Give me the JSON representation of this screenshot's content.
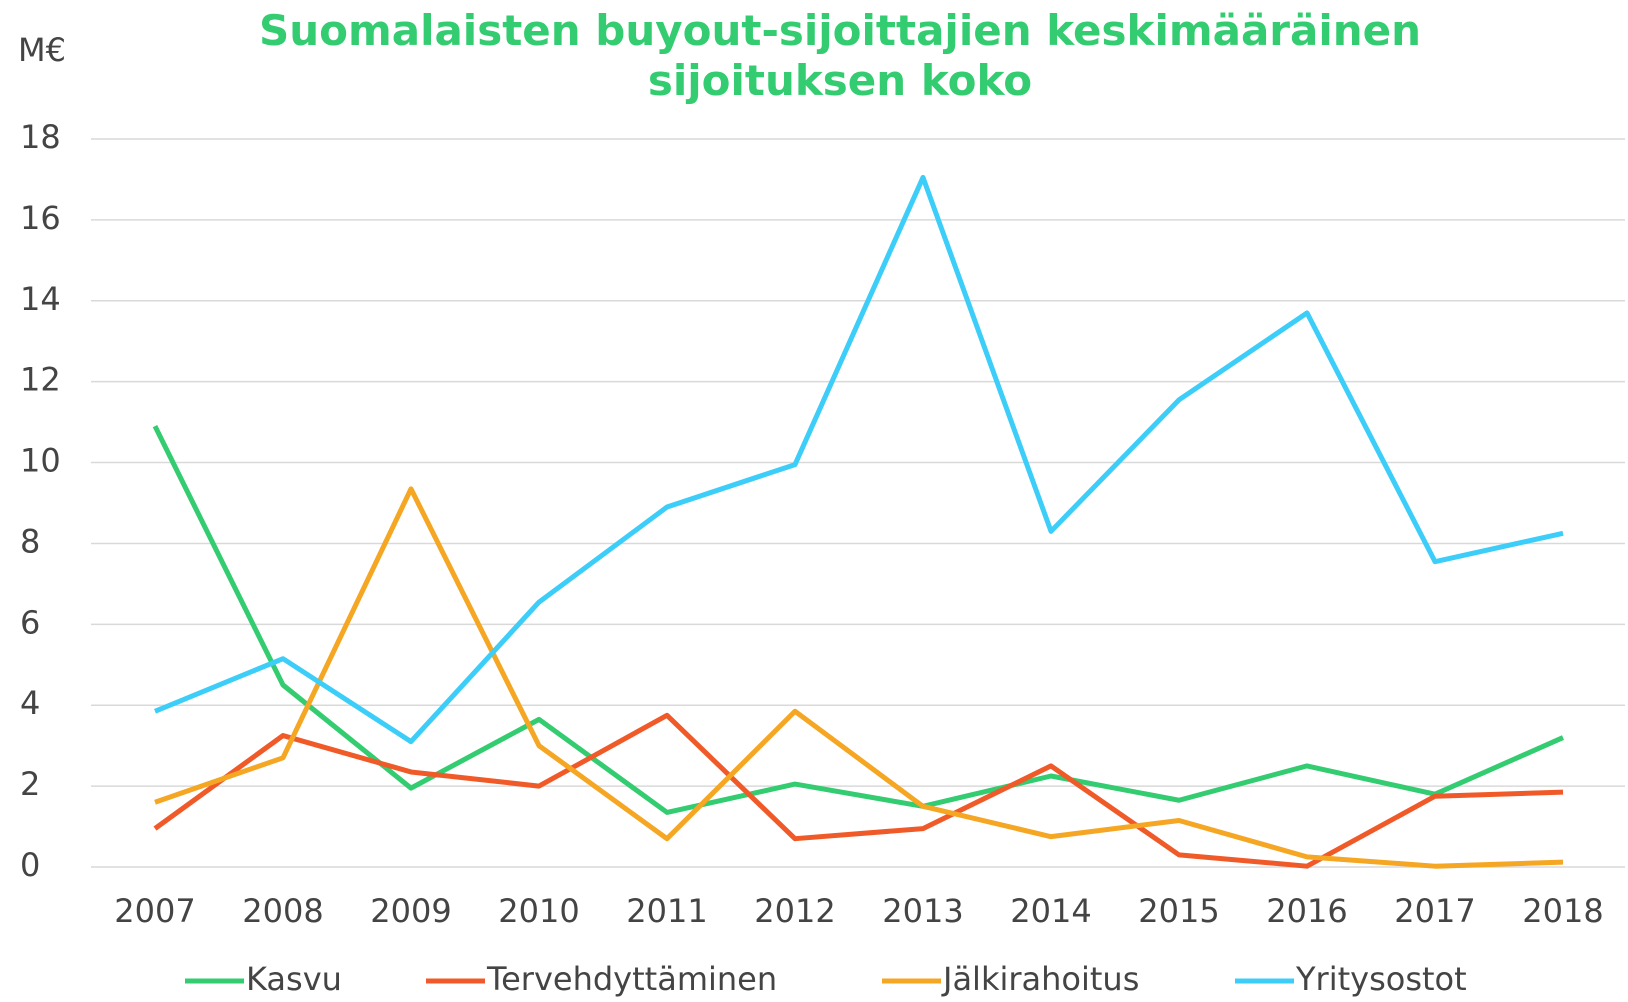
{
  "chart_data": {
    "type": "line",
    "title": "Suomalaisten buyout-sijoittajien keskimääräinen sijoituksen koko",
    "y_label": "M€",
    "categories": [
      "2007",
      "2008",
      "2009",
      "2010",
      "2011",
      "2012",
      "2013",
      "2014",
      "2015",
      "2016",
      "2017",
      "2018"
    ],
    "series": [
      {
        "name": "Kasvu",
        "color": "#33cc70",
        "values": [
          10.9,
          4.5,
          1.95,
          3.65,
          1.35,
          2.05,
          1.5,
          2.25,
          1.65,
          2.5,
          1.8,
          3.2
        ]
      },
      {
        "name": "Tervehdyttäminen",
        "color": "#f05a28",
        "values": [
          0.95,
          3.25,
          2.35,
          2.0,
          3.75,
          0.7,
          0.95,
          2.5,
          0.3,
          0.02,
          1.75,
          1.85
        ]
      },
      {
        "name": "Jälkirahoitus",
        "color": "#f5a623",
        "values": [
          1.6,
          2.7,
          9.35,
          3.0,
          0.7,
          3.85,
          1.5,
          0.75,
          1.15,
          0.25,
          0.02,
          0.12
        ]
      },
      {
        "name": "Yritysostot",
        "color": "#3ccdf8",
        "values": [
          3.85,
          5.15,
          3.1,
          6.55,
          8.9,
          9.95,
          17.05,
          8.3,
          11.55,
          13.7,
          7.55,
          8.25
        ]
      }
    ],
    "ylim": [
      0,
      18
    ],
    "yticks": [
      0,
      2,
      4,
      6,
      8,
      10,
      12,
      14,
      16,
      18
    ],
    "grid": true,
    "legend": "bottom"
  }
}
